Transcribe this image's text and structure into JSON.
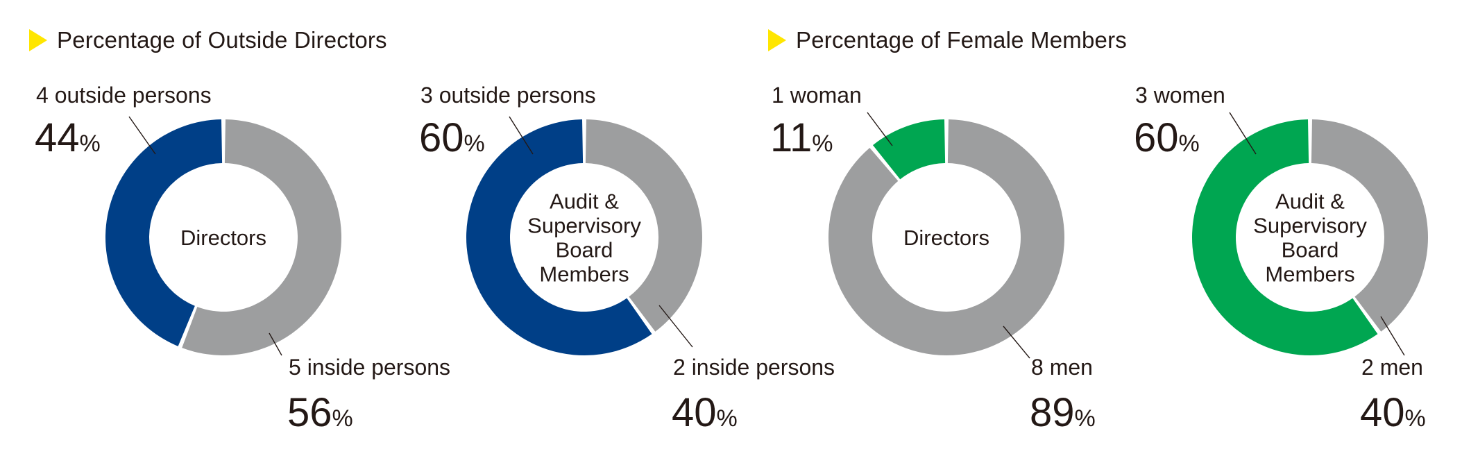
{
  "sections": {
    "outside": {
      "title": "Percentage of Outside Directors"
    },
    "female": {
      "title": "Percentage of Female Members"
    }
  },
  "colors": {
    "outside_accent": "#003f87",
    "female_accent": "#00a651",
    "remainder": "#9d9e9f",
    "marker": "#ffe600"
  },
  "chart_data": [
    {
      "type": "pie",
      "variant": "donut",
      "section": "Percentage of Outside Directors",
      "center_label": [
        "Directors"
      ],
      "slices": [
        {
          "label": "4 outside persons",
          "value": 44,
          "percent_text": "44",
          "color": "#003f87"
        },
        {
          "label": "5 inside persons",
          "value": 56,
          "percent_text": "56",
          "color": "#9d9e9f"
        }
      ],
      "unit": "%"
    },
    {
      "type": "pie",
      "variant": "donut",
      "section": "Percentage of Outside Directors",
      "center_label": [
        "Audit &",
        "Supervisory",
        "Board",
        "Members"
      ],
      "slices": [
        {
          "label": "3 outside persons",
          "value": 60,
          "percent_text": "60",
          "color": "#003f87"
        },
        {
          "label": "2 inside persons",
          "value": 40,
          "percent_text": "40",
          "color": "#9d9e9f"
        }
      ],
      "unit": "%"
    },
    {
      "type": "pie",
      "variant": "donut",
      "section": "Percentage of Female Members",
      "center_label": [
        "Directors"
      ],
      "slices": [
        {
          "label": "1 woman",
          "value": 11,
          "percent_text": "11",
          "color": "#00a651"
        },
        {
          "label": "8 men",
          "value": 89,
          "percent_text": "89",
          "color": "#9d9e9f"
        }
      ],
      "unit": "%"
    },
    {
      "type": "pie",
      "variant": "donut",
      "section": "Percentage of Female Members",
      "center_label": [
        "Audit &",
        "Supervisory",
        "Board",
        "Members"
      ],
      "slices": [
        {
          "label": "3 women",
          "value": 60,
          "percent_text": "60",
          "color": "#00a651"
        },
        {
          "label": "2 men",
          "value": 40,
          "percent_text": "40",
          "color": "#9d9e9f"
        }
      ],
      "unit": "%"
    }
  ]
}
